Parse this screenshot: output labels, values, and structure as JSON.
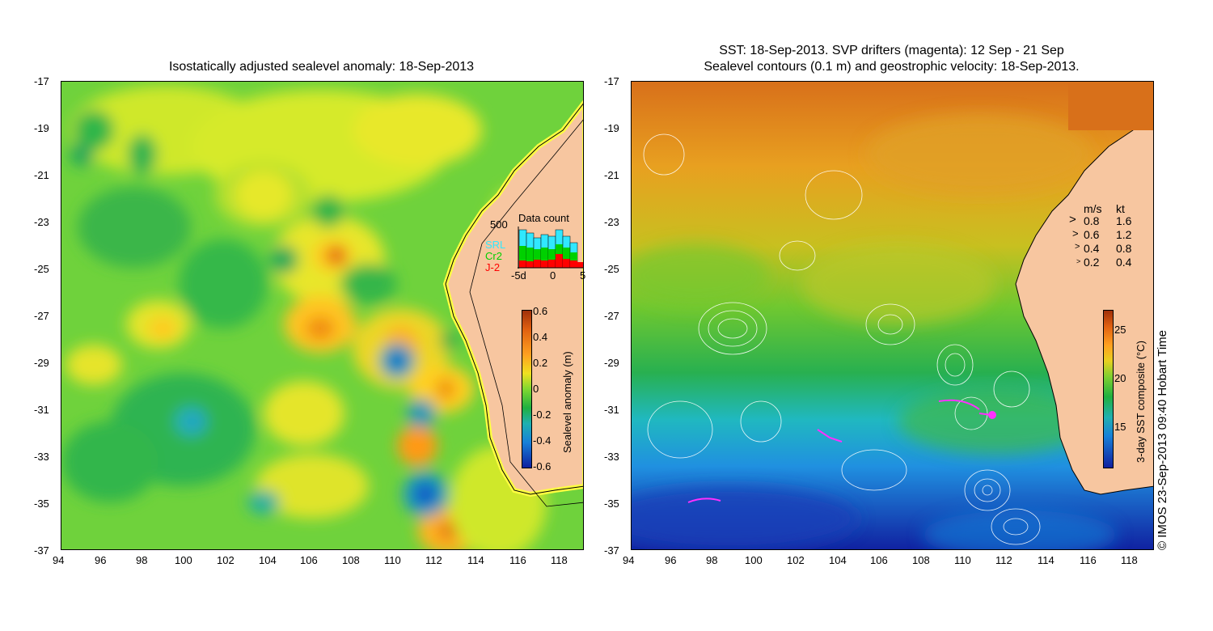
{
  "left_map": {
    "title": "Isostatically adjusted sealevel anomaly: 18-Sep-2013",
    "x_ticks": [
      "94",
      "96",
      "98",
      "100",
      "102",
      "104",
      "106",
      "108",
      "110",
      "112",
      "114",
      "116",
      "118"
    ],
    "y_ticks": [
      "-17",
      "-19",
      "-21",
      "-23",
      "-25",
      "-27",
      "-29",
      "-31",
      "-33",
      "-35",
      "-37"
    ],
    "colorbar": {
      "label": "Sealevel anomaly (m)",
      "ticks": [
        "0.6",
        "0.4",
        "0.2",
        "0",
        "-0.2",
        "-0.4",
        "-0.6"
      ]
    },
    "data_count": {
      "title": "Data count",
      "ymax_label": "500",
      "x_labels": [
        "-5d",
        "0",
        "5"
      ],
      "legend": [
        {
          "name": "SRL",
          "color": "#30e8ff"
        },
        {
          "name": "Cr2",
          "color": "#00d000"
        },
        {
          "name": "J-2",
          "color": "#ff0000"
        }
      ]
    }
  },
  "right_map": {
    "title_line1": "SST: 18-Sep-2013. SVP drifters (magenta): 12 Sep - 21 Sep",
    "title_line2": "Sealevel contours (0.1 m) and geostrophic velocity: 18-Sep-2013.",
    "x_ticks": [
      "94",
      "96",
      "98",
      "100",
      "102",
      "104",
      "106",
      "108",
      "110",
      "112",
      "114",
      "116",
      "118"
    ],
    "y_ticks": [
      "-17",
      "-19",
      "-21",
      "-23",
      "-25",
      "-27",
      "-29",
      "-31",
      "-33",
      "-35",
      "-37"
    ],
    "colorbar": {
      "label": "3-day SST composite (°C)",
      "ticks": [
        "25",
        "20",
        "15"
      ]
    },
    "velocity_legend": {
      "header_ms": "m/s",
      "header_kt": "kt",
      "rows": [
        {
          "ms": "0.8",
          "kt": "1.6"
        },
        {
          "ms": "0.6",
          "kt": "1.2"
        },
        {
          "ms": "0.4",
          "kt": "0.8"
        },
        {
          "ms": "0.2",
          "kt": "0.4"
        }
      ]
    }
  },
  "credit": "© IMOS 23-Sep-2013 09:40 Hobart Time"
}
